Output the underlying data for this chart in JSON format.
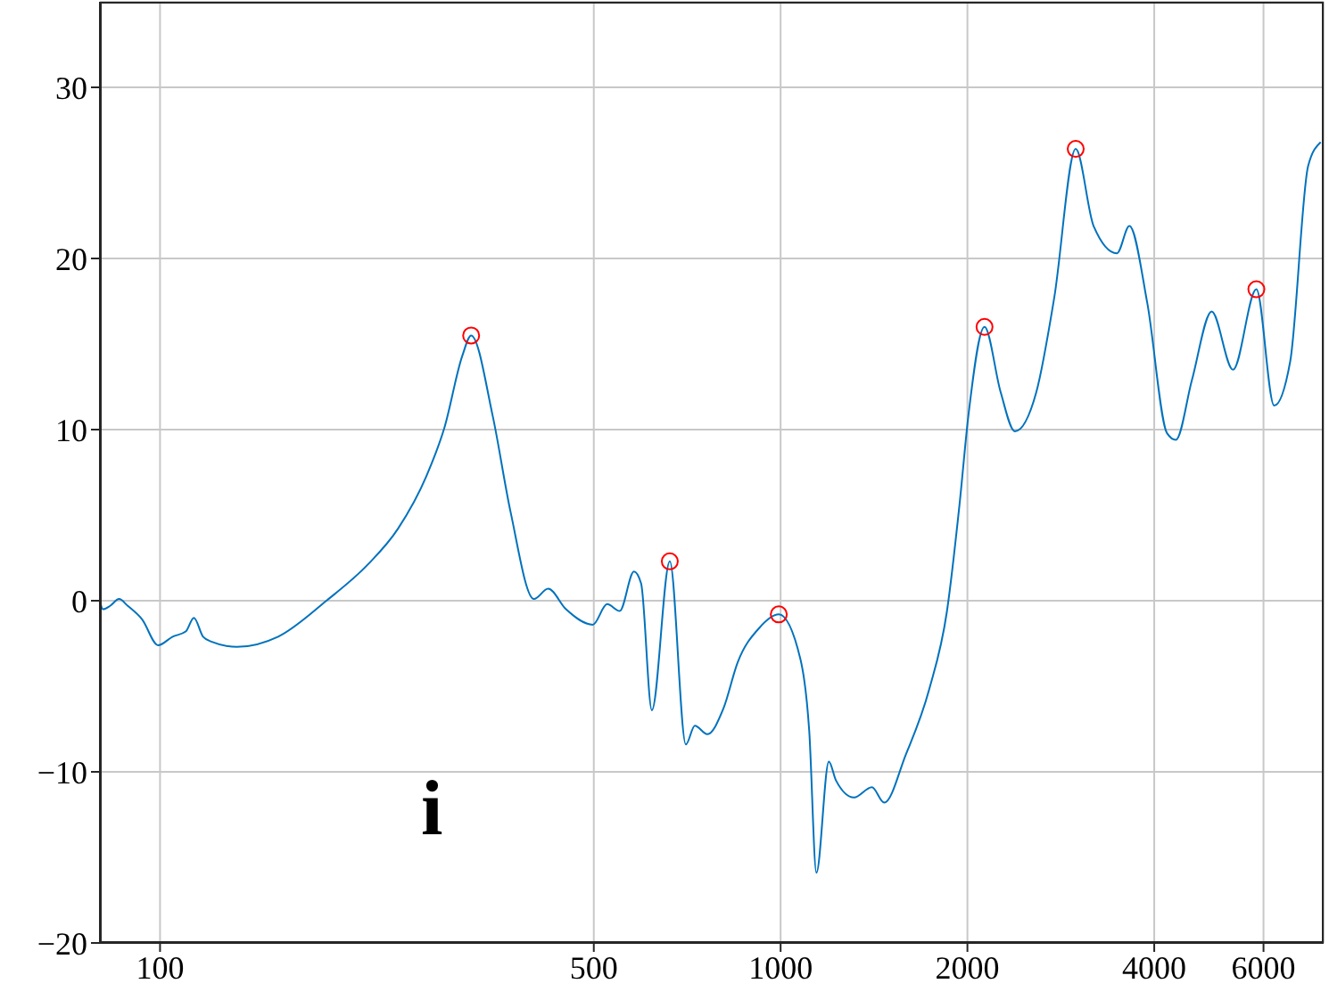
{
  "chart_data": {
    "type": "line",
    "log": "x",
    "grid": true,
    "xlim": [
      80,
      7500
    ],
    "xticks": [
      100,
      500,
      1000,
      2000,
      4000,
      6000
    ],
    "ylim": [
      -20,
      35
    ],
    "yticks": [
      -20,
      -10,
      0,
      10,
      20,
      30
    ],
    "annotations": [
      "i"
    ],
    "series": [
      {
        "color": "#0072bd",
        "marker": "none",
        "x": [
          80,
          80.9,
          83.1,
          85.9,
          88.7,
          93.6,
          99.3,
          104.8,
          110,
          113.4,
          117.3,
          121.2,
          133,
          155,
          185.4,
          216,
          241.7,
          268.8,
          287.2,
          306.9,
          317.2,
          343.6,
          367.1,
          400.4,
          422.1,
          451,
          498.2,
          525.4,
          550.4,
          580.4,
          596,
          620.2,
          662.9,
          703.6,
          727.4,
          761.9,
          808.8,
          852.8,
          923.4,
          993.3,
          1076,
          1112,
          1142,
          1196,
          1228,
          1313,
          1403,
          1469,
          1591,
          1735,
          1854,
          1942,
          2007,
          2131,
          2262,
          2385,
          2583,
          2760,
          2989,
          3194,
          3483,
          3648,
          3898,
          4193,
          4335,
          4601,
          4950,
          5359,
          5843,
          6242,
          6626,
          7080,
          7418
        ],
        "values": [
          0,
          -0.5,
          -0.3,
          0.1,
          -0.3,
          -1.1,
          -2.6,
          -2.1,
          -1.8,
          -1.0,
          -2.1,
          -2.4,
          -2.7,
          -2.1,
          0,
          2.1,
          4.2,
          7.3,
          10.1,
          14.3,
          15.5,
          10.8,
          5.2,
          0.1,
          0.7,
          -0.5,
          -1.4,
          -0.2,
          -0.6,
          1.7,
          1.0,
          -6.4,
          2.3,
          -8.4,
          -7.3,
          -7.8,
          -6.3,
          -3.6,
          -1.6,
          -0.8,
          -3.4,
          -7.6,
          -15.9,
          -9.4,
          -10.5,
          -11.5,
          -10.9,
          -11.8,
          -9.0,
          -5.2,
          -0.6,
          5.6,
          10.8,
          16.0,
          12.2,
          9.9,
          12.2,
          17.7,
          26.4,
          21.9,
          20.3,
          21.9,
          17.4,
          9.8,
          9.4,
          12.9,
          16.9,
          13.5,
          18.2,
          11.4,
          14.0,
          25.4,
          26.8
        ]
      },
      {
        "type": "scatter",
        "color": "#ff0000",
        "marker": "circle",
        "x": [
          317.2,
          662.9,
          993.3,
          2131,
          2989,
          5843
        ],
        "values": [
          15.5,
          2.3,
          -0.8,
          16.0,
          26.4,
          18.2
        ]
      }
    ]
  }
}
